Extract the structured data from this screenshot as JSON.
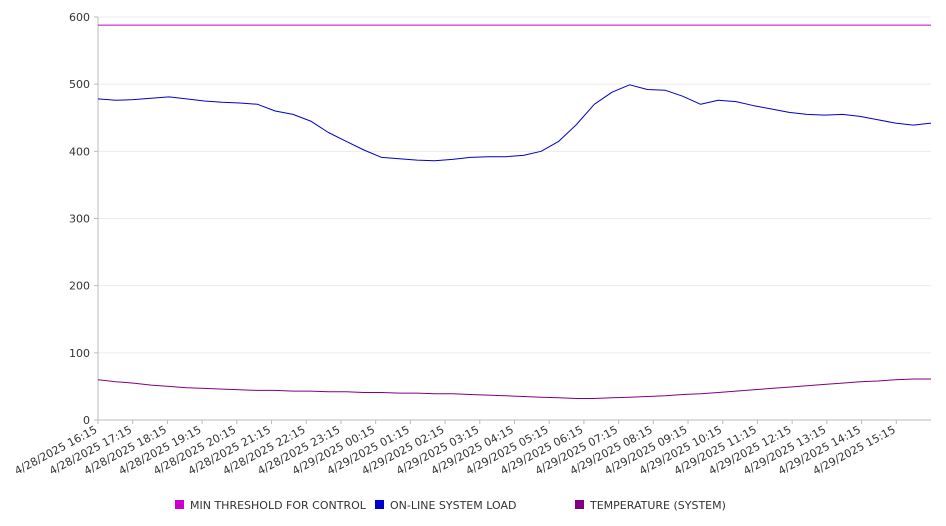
{
  "chart_data": {
    "type": "line",
    "title": "",
    "xlabel": "",
    "ylabel": "",
    "ylim": [
      0,
      600
    ],
    "yticks": [
      0,
      100,
      200,
      300,
      400,
      500,
      600
    ],
    "ytick_labels": [
      "0",
      "100",
      "200",
      "300",
      "400",
      "500",
      "600"
    ],
    "grid": true,
    "legend_position": "bottom",
    "xtick_labels": [
      "4/28/2025 16:15",
      "4/28/2025 17:15",
      "4/28/2025 18:15",
      "4/28/2025 19:15",
      "4/28/2025 20:15",
      "4/28/2025 21:15",
      "4/28/2025 22:15",
      "4/28/2025 23:15",
      "4/29/2025 00:15",
      "4/29/2025 01:15",
      "4/29/2025 02:15",
      "4/29/2025 03:15",
      "4/29/2025 04:15",
      "4/29/2025 05:15",
      "4/29/2025 06:15",
      "4/29/2025 07:15",
      "4/29/2025 08:15",
      "4/29/2025 09:15",
      "4/29/2025 10:15",
      "4/29/2025 11:15",
      "4/29/2025 12:15",
      "4/29/2025 13:15",
      "4/29/2025 14:15",
      "4/29/2025 15:15"
    ],
    "x": [
      "4/28/2025 16:15",
      "4/28/2025 16:45",
      "4/28/2025 17:15",
      "4/28/2025 17:45",
      "4/28/2025 18:15",
      "4/28/2025 18:45",
      "4/28/2025 19:15",
      "4/28/2025 19:45",
      "4/28/2025 20:15",
      "4/28/2025 20:45",
      "4/28/2025 21:15",
      "4/28/2025 21:45",
      "4/28/2025 22:15",
      "4/28/2025 22:45",
      "4/28/2025 23:15",
      "4/28/2025 23:45",
      "4/29/2025 00:15",
      "4/29/2025 00:45",
      "4/29/2025 01:15",
      "4/29/2025 01:45",
      "4/29/2025 02:15",
      "4/29/2025 02:45",
      "4/29/2025 03:15",
      "4/29/2025 03:45",
      "4/29/2025 04:15",
      "4/29/2025 04:45",
      "4/29/2025 05:15",
      "4/29/2025 05:45",
      "4/29/2025 06:15",
      "4/29/2025 06:45",
      "4/29/2025 07:15",
      "4/29/2025 07:45",
      "4/29/2025 08:15",
      "4/29/2025 08:45",
      "4/29/2025 09:15",
      "4/29/2025 09:45",
      "4/29/2025 10:15",
      "4/29/2025 10:45",
      "4/29/2025 11:15",
      "4/29/2025 11:45",
      "4/29/2025 12:15",
      "4/29/2025 12:45",
      "4/29/2025 13:15",
      "4/29/2025 13:45",
      "4/29/2025 14:15",
      "4/29/2025 14:45",
      "4/29/2025 15:15",
      "4/29/2025 15:45"
    ],
    "series": [
      {
        "name": "MIN THRESHOLD FOR CONTROL",
        "color": "#cc00cc",
        "values": [
          588,
          588,
          588,
          588,
          588,
          588,
          588,
          588,
          588,
          588,
          588,
          588,
          588,
          588,
          588,
          588,
          588,
          588,
          588,
          588,
          588,
          588,
          588,
          588,
          588,
          588,
          588,
          588,
          588,
          588,
          588,
          588,
          588,
          588,
          588,
          588,
          588,
          588,
          588,
          588,
          588,
          588,
          588,
          588,
          588,
          588,
          588,
          588
        ]
      },
      {
        "name": "ON-LINE SYSTEM LOAD",
        "color": "#0000cc",
        "values": [
          478,
          476,
          477,
          479,
          481,
          478,
          475,
          473,
          472,
          470,
          460,
          455,
          445,
          428,
          415,
          402,
          391,
          389,
          387,
          386,
          388,
          391,
          392,
          392,
          394,
          400,
          415,
          440,
          470,
          488,
          499,
          492,
          491,
          482,
          470,
          476,
          474,
          468,
          463,
          458,
          455,
          454,
          455,
          452,
          447,
          442,
          439,
          442
        ]
      },
      {
        "name": "TEMPERATURE (SYSTEM)",
        "color": "#800080",
        "values": [
          60,
          57,
          55,
          52,
          50,
          48,
          47,
          46,
          45,
          44,
          44,
          43,
          43,
          42,
          42,
          41,
          41,
          40,
          40,
          39,
          39,
          38,
          37,
          36,
          35,
          34,
          33,
          32,
          32,
          33,
          34,
          35,
          36,
          38,
          39,
          41,
          43,
          45,
          47,
          49,
          51,
          53,
          55,
          57,
          58,
          60,
          61,
          61
        ]
      }
    ]
  }
}
